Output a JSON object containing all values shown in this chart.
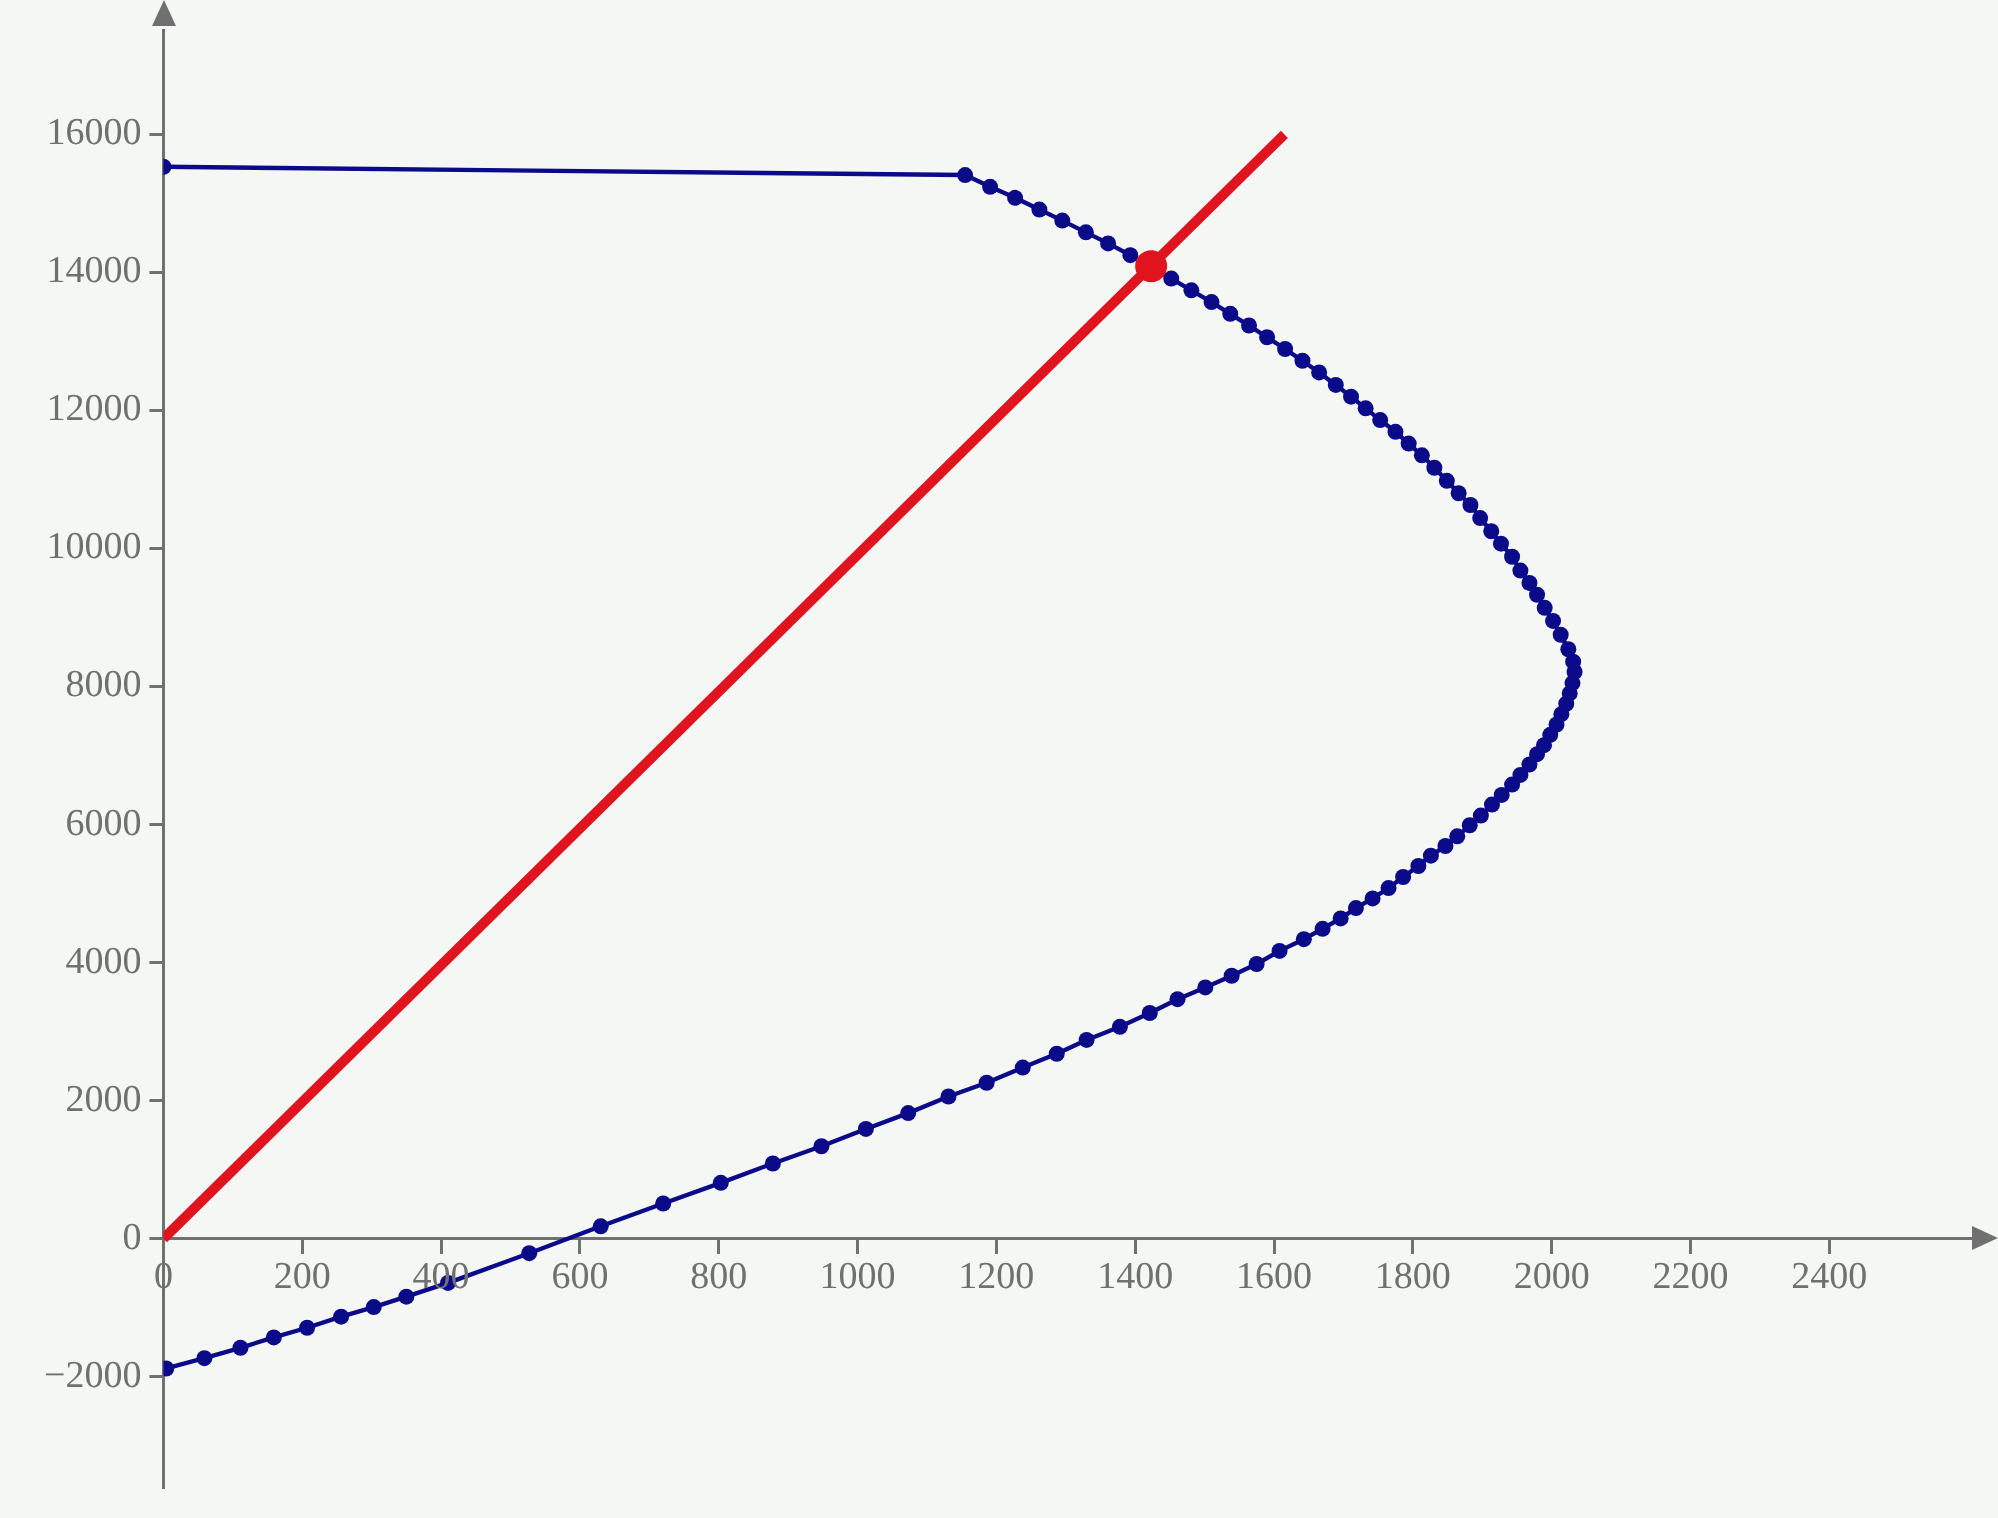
{
  "chart_data": {
    "type": "line",
    "xlim": [
      0,
      2620
    ],
    "ylim": [
      -3600,
      17500
    ],
    "xticks": [
      0,
      200,
      400,
      600,
      800,
      1000,
      1200,
      1400,
      1600,
      1800,
      2000,
      2200,
      2400
    ],
    "yticks": [
      {
        "value": -2000,
        "label": "−2000"
      },
      0,
      2000,
      4000,
      6000,
      8000,
      10000,
      12000,
      14000,
      16000
    ],
    "grid": false,
    "legend": false,
    "series": [
      {
        "type": "line",
        "color": "#0b0b8a",
        "marker": "circle",
        "x": [
          4,
          59,
          111,
          159,
          207,
          256,
          303,
          350,
          410,
          527,
          630,
          720,
          803,
          878,
          948,
          1012,
          1073,
          1131,
          1186,
          1238,
          1287,
          1330,
          1378,
          1421,
          1461,
          1501,
          1539,
          1575,
          1608,
          1643,
          1670,
          1696,
          1718,
          1742,
          1765,
          1786,
          1808,
          1826,
          1847,
          1864,
          1882,
          1898,
          1914,
          1928,
          1943,
          1955,
          1968,
          1979,
          1989,
          1998,
          2007,
          2014,
          2021,
          2026,
          2030,
          2033,
          2031,
          2024,
          2013,
          2002,
          1990,
          1979,
          1968,
          1955,
          1943,
          1927,
          1913,
          1897,
          1883,
          1866,
          1849,
          1831,
          1813,
          1794,
          1775,
          1753,
          1732,
          1711,
          1689,
          1665,
          1641,
          1616,
          1590,
          1564,
          1537,
          1510,
          1481,
          1452,
          1393,
          1361,
          1329,
          1295,
          1262,
          1227,
          1191,
          1155,
          0
        ],
        "values": [
          -1880,
          -1730,
          -1580,
          -1430,
          -1290,
          -1130,
          -990,
          -840,
          -640,
          -210,
          180,
          510,
          810,
          1090,
          1340,
          1590,
          1820,
          2060,
          2260,
          2480,
          2680,
          2880,
          3070,
          3270,
          3470,
          3640,
          3810,
          3980,
          4170,
          4340,
          4490,
          4640,
          4790,
          4930,
          5080,
          5240,
          5400,
          5550,
          5690,
          5830,
          5990,
          6130,
          6290,
          6430,
          6580,
          6720,
          6870,
          7020,
          7150,
          7300,
          7450,
          7600,
          7750,
          7900,
          8050,
          8210,
          8360,
          8540,
          8750,
          8950,
          9140,
          9330,
          9500,
          9680,
          9880,
          10070,
          10250,
          10440,
          10630,
          10800,
          10980,
          11170,
          11350,
          11520,
          11690,
          11860,
          12030,
          12200,
          12370,
          12550,
          12720,
          12890,
          13060,
          13230,
          13400,
          13570,
          13740,
          13910,
          14250,
          14420,
          14580,
          14750,
          14910,
          15080,
          15240,
          15410,
          15530
        ]
      },
      {
        "type": "line",
        "color": "#e0141e",
        "marker": "none",
        "x": [
          0,
          1615
        ],
        "values": [
          0,
          16000
        ]
      },
      {
        "type": "scatter",
        "color": "#e0141e",
        "marker": "circle",
        "x": [
          1423
        ],
        "values": [
          14090
        ]
      }
    ]
  }
}
